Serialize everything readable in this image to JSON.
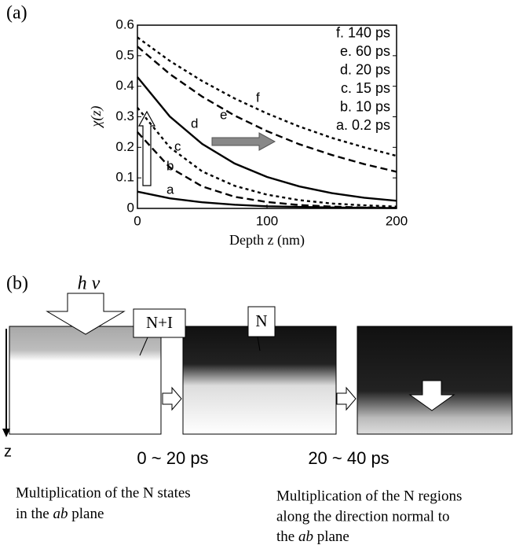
{
  "chart_data": {
    "type": "line",
    "panel_label": "(a)",
    "x_label": "Depth z (nm)",
    "y_label": "χ(z)",
    "x": [
      0,
      25,
      50,
      75,
      100,
      125,
      150,
      175,
      200
    ],
    "xlim": [
      0,
      200
    ],
    "xticks": [
      0,
      100,
      200
    ],
    "ylim": [
      0,
      0.6
    ],
    "yticks": [
      0,
      0.1,
      0.2,
      0.3,
      0.4,
      0.5,
      0.6
    ],
    "series": [
      {
        "name": "a. 0.2 ps",
        "label": "a",
        "style": "solid",
        "values": [
          0.055,
          0.033,
          0.02,
          0.012,
          0.007,
          0.005,
          0.003,
          0.002,
          0.001
        ]
      },
      {
        "name": "b. 10 ps",
        "label": "b",
        "style": "dashed",
        "values": [
          0.25,
          0.134,
          0.072,
          0.038,
          0.021,
          0.011,
          0.006,
          0.003,
          0.002
        ]
      },
      {
        "name": "c. 15 ps",
        "label": "c",
        "style": "dotted",
        "values": [
          0.33,
          0.2,
          0.121,
          0.074,
          0.045,
          0.027,
          0.016,
          0.01,
          0.006
        ]
      },
      {
        "name": "d. 20 ps",
        "label": "d",
        "style": "solid",
        "values": [
          0.43,
          0.301,
          0.211,
          0.147,
          0.103,
          0.072,
          0.05,
          0.035,
          0.025
        ]
      },
      {
        "name": "e. 60 ps",
        "label": "e",
        "style": "dashed",
        "values": [
          0.53,
          0.44,
          0.366,
          0.304,
          0.253,
          0.21,
          0.175,
          0.145,
          0.12
        ]
      },
      {
        "name": "f. 140 ps",
        "label": "f",
        "style": "dotted",
        "values": [
          0.56,
          0.483,
          0.417,
          0.36,
          0.311,
          0.268,
          0.231,
          0.2,
          0.172
        ]
      }
    ]
  },
  "diagram": {
    "panel_label": "(b)",
    "photon": "h ν",
    "state1": "N+I",
    "state2": "N",
    "axis": "z",
    "time1": "0 ~ 20 ps",
    "time2": "20 ~ 40 ps",
    "caption_left": {
      "line1": "Multiplication of the N states",
      "line2": [
        "in the ",
        "ab",
        " plane"
      ]
    },
    "caption_right": {
      "line1": "Multiplication of the N regions",
      "line2": "along the direction normal to",
      "line3": [
        "the ",
        "ab",
        " plane"
      ]
    }
  }
}
